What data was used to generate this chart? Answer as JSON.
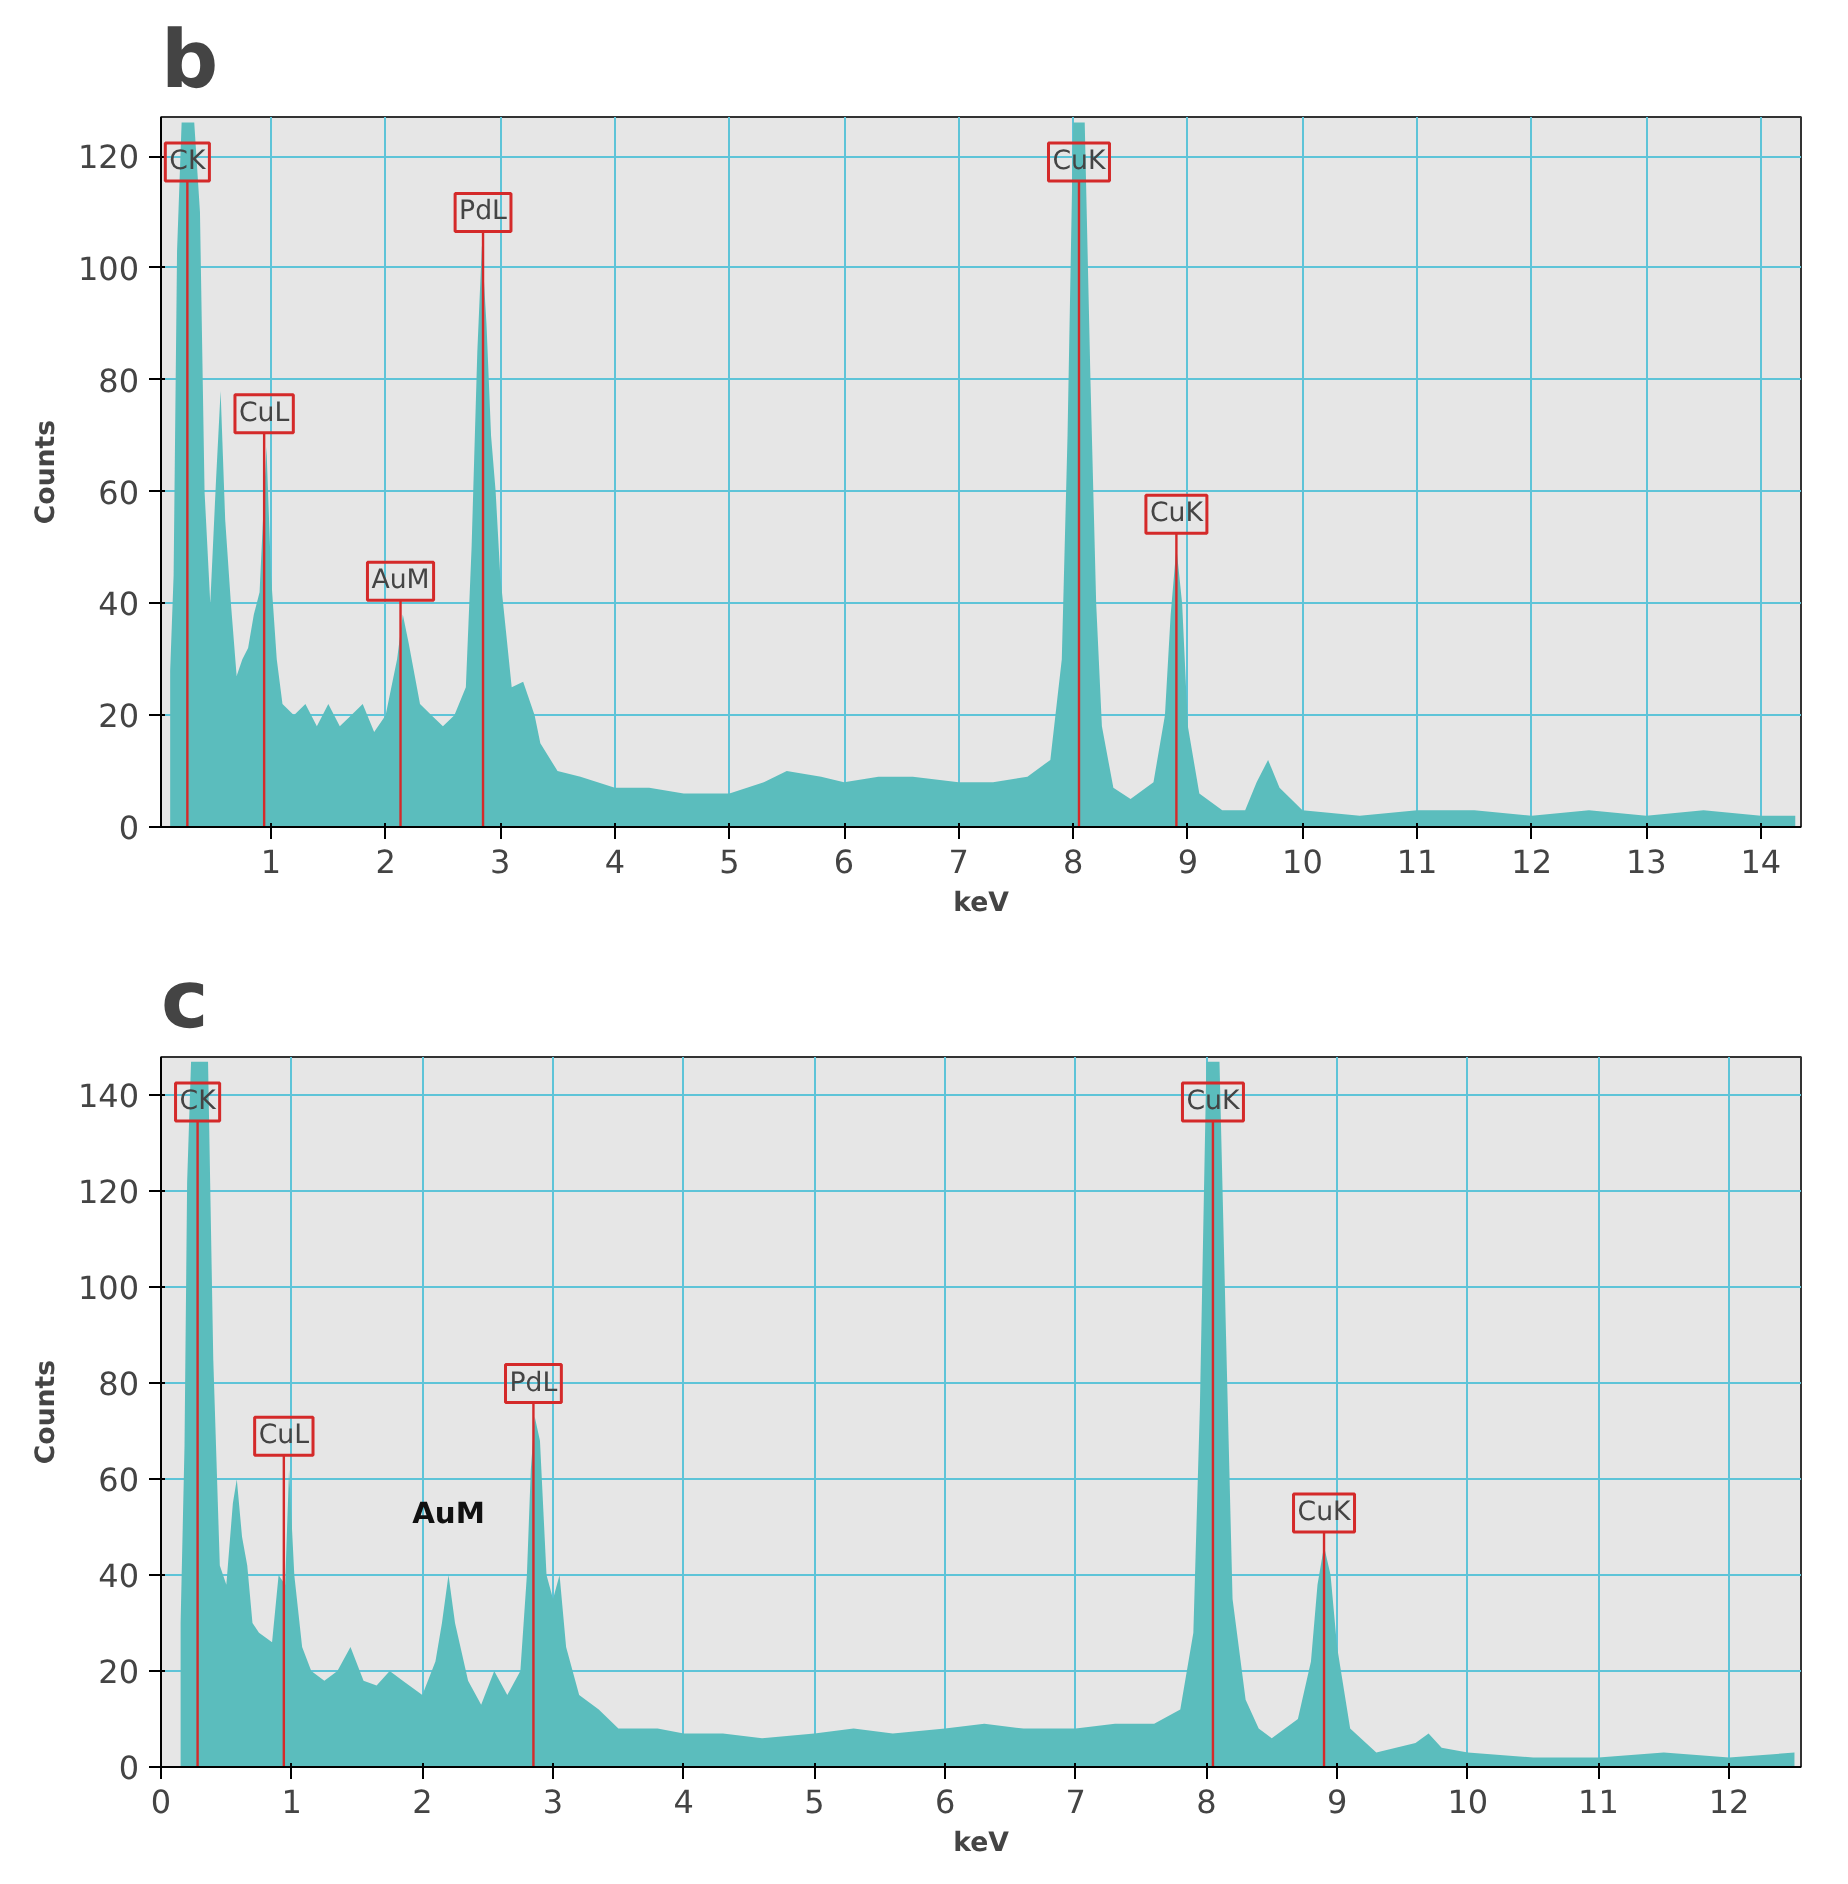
{
  "chart_data": [
    {
      "type": "area",
      "title": "b",
      "xlabel": "keV",
      "ylabel": "Counts",
      "color": "#5bbdbd",
      "grid": true,
      "xlim": [
        0.04,
        14.35
      ],
      "ylim": [
        0,
        127
      ],
      "xticks": [
        1,
        2,
        3,
        4,
        5,
        6,
        7,
        8,
        9,
        10,
        11,
        12,
        13,
        14
      ],
      "yticks": [
        0,
        20,
        40,
        60,
        80,
        100,
        120
      ],
      "x": [
        0.12,
        0.15,
        0.18,
        0.22,
        0.27,
        0.33,
        0.38,
        0.42,
        0.47,
        0.52,
        0.56,
        0.6,
        0.65,
        0.7,
        0.75,
        0.8,
        0.85,
        0.9,
        0.93,
        0.96,
        1.0,
        1.05,
        1.1,
        1.2,
        1.3,
        1.4,
        1.5,
        1.6,
        1.7,
        1.8,
        1.9,
        2.0,
        2.05,
        2.1,
        2.15,
        2.2,
        2.3,
        2.4,
        2.5,
        2.6,
        2.7,
        2.75,
        2.8,
        2.84,
        2.88,
        2.92,
        2.96,
        3.0,
        3.05,
        3.1,
        3.2,
        3.3,
        3.35,
        3.5,
        3.7,
        4.0,
        4.3,
        4.6,
        5.0,
        5.3,
        5.5,
        5.8,
        6.0,
        6.3,
        6.6,
        7.0,
        7.3,
        7.6,
        7.8,
        7.9,
        7.95,
        8.0,
        8.05,
        8.1,
        8.15,
        8.2,
        8.25,
        8.35,
        8.5,
        8.7,
        8.8,
        8.85,
        8.9,
        8.95,
        9.0,
        9.1,
        9.3,
        9.5,
        9.6,
        9.7,
        9.8,
        10.0,
        10.5,
        11.0,
        11.5,
        12.0,
        12.5,
        13.0,
        13.5,
        14.0,
        14.3
      ],
      "values": [
        28,
        45,
        103,
        126,
        126,
        126,
        110,
        60,
        40,
        62,
        78,
        55,
        40,
        27,
        30,
        32,
        38,
        42,
        55,
        68,
        45,
        30,
        22,
        20,
        22,
        18,
        22,
        18,
        20,
        22,
        17,
        20,
        25,
        30,
        38,
        33,
        22,
        20,
        18,
        20,
        25,
        50,
        85,
        104,
        90,
        70,
        60,
        45,
        35,
        25,
        26,
        20,
        15,
        10,
        9,
        7,
        7,
        6,
        6,
        8,
        10,
        9,
        8,
        9,
        9,
        8,
        8,
        9,
        12,
        30,
        70,
        126,
        126,
        126,
        80,
        40,
        18,
        7,
        5,
        8,
        20,
        38,
        50,
        40,
        18,
        6,
        3,
        3,
        8,
        12,
        7,
        3,
        2,
        3,
        3,
        2,
        3,
        2,
        3,
        2,
        2
      ],
      "ref_lines": [
        {
          "axis": "x",
          "value": 0.27,
          "label": "CK",
          "color": "#d42a2a"
        },
        {
          "axis": "x",
          "value": 0.94,
          "label": "CuL",
          "color": "#d42a2a"
        },
        {
          "axis": "x",
          "value": 2.13,
          "label": "AuM",
          "color": "#d42a2a"
        },
        {
          "axis": "x",
          "value": 2.85,
          "label": "PdL",
          "color": "#d42a2a"
        },
        {
          "axis": "x",
          "value": 8.05,
          "label": "CuK",
          "color": "#d42a2a"
        },
        {
          "axis": "x",
          "value": 8.9,
          "label": "CuK",
          "color": "#d42a2a"
        }
      ]
    },
    {
      "type": "area",
      "title": "c",
      "xlabel": "keV",
      "ylabel": "Counts",
      "color": "#5bbdbd",
      "grid": true,
      "xlim": [
        0,
        12.55
      ],
      "ylim": [
        0,
        148
      ],
      "xticks": [
        0,
        1,
        2,
        3,
        4,
        5,
        6,
        7,
        8,
        9,
        10,
        11,
        12
      ],
      "yticks": [
        0,
        20,
        40,
        60,
        80,
        100,
        120,
        140
      ],
      "x": [
        0.15,
        0.18,
        0.2,
        0.23,
        0.3,
        0.36,
        0.4,
        0.45,
        0.5,
        0.55,
        0.58,
        0.62,
        0.66,
        0.7,
        0.75,
        0.8,
        0.85,
        0.9,
        0.95,
        0.98,
        1.02,
        1.08,
        1.15,
        1.25,
        1.35,
        1.45,
        1.55,
        1.65,
        1.75,
        1.85,
        2.0,
        2.1,
        2.15,
        2.2,
        2.25,
        2.35,
        2.45,
        2.55,
        2.65,
        2.75,
        2.8,
        2.83,
        2.86,
        2.9,
        2.95,
        3.0,
        3.05,
        3.1,
        3.2,
        3.35,
        3.5,
        3.8,
        4.0,
        4.3,
        4.6,
        5.0,
        5.3,
        5.6,
        6.0,
        6.3,
        6.6,
        7.0,
        7.3,
        7.6,
        7.8,
        7.9,
        7.95,
        8.0,
        8.05,
        8.1,
        8.15,
        8.2,
        8.3,
        8.4,
        8.5,
        8.7,
        8.8,
        8.85,
        8.9,
        8.95,
        9.0,
        9.1,
        9.3,
        9.6,
        9.7,
        9.8,
        10.0,
        10.5,
        11.0,
        11.5,
        12.0,
        12.5
      ],
      "values": [
        30,
        67,
        122,
        147,
        147,
        147,
        85,
        42,
        38,
        55,
        60,
        48,
        42,
        30,
        28,
        27,
        26,
        40,
        38,
        62,
        40,
        25,
        20,
        18,
        20,
        25,
        18,
        17,
        20,
        18,
        15,
        22,
        30,
        40,
        30,
        18,
        13,
        20,
        15,
        20,
        40,
        62,
        73,
        68,
        40,
        35,
        40,
        25,
        15,
        12,
        8,
        8,
        7,
        7,
        6,
        7,
        8,
        7,
        8,
        9,
        8,
        8,
        9,
        9,
        12,
        28,
        75,
        147,
        147,
        147,
        90,
        35,
        14,
        8,
        6,
        10,
        22,
        38,
        46,
        40,
        25,
        8,
        3,
        5,
        7,
        4,
        3,
        2,
        2,
        3,
        2,
        3
      ],
      "annotations": [
        {
          "text": "AuM",
          "x": 2.2,
          "y": 40
        }
      ],
      "ref_lines": [
        {
          "axis": "x",
          "value": 0.28,
          "label": "CK",
          "color": "#d42a2a"
        },
        {
          "axis": "x",
          "value": 0.94,
          "label": "CuL",
          "color": "#d42a2a"
        },
        {
          "axis": "x",
          "value": 2.85,
          "label": "PdL",
          "color": "#d42a2a"
        },
        {
          "axis": "x",
          "value": 8.05,
          "label": "CuK",
          "color": "#d42a2a"
        },
        {
          "axis": "x",
          "value": 8.9,
          "label": "CuK",
          "color": "#d42a2a"
        }
      ]
    }
  ]
}
